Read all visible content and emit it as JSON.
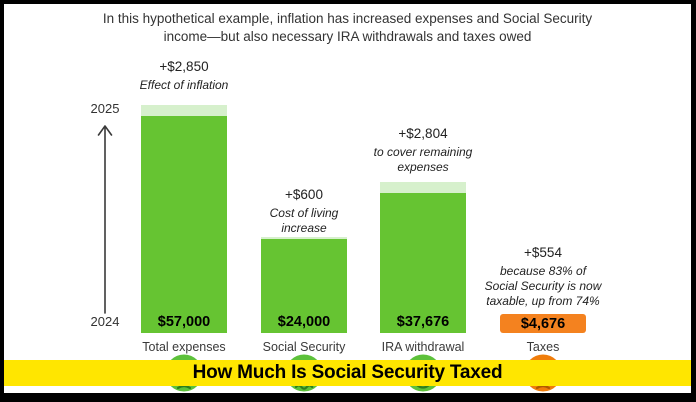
{
  "title": "In this hypothetical example, inflation has increased expenses and Social Security income—but also necessary IRA withdrawals and taxes owed",
  "axis": {
    "top_year": "2025",
    "bottom_year": "2024"
  },
  "chart_data": {
    "type": "bar",
    "title": "In this hypothetical example, inflation has increased expenses and Social Security income—but also necessary IRA withdrawals and taxes owed",
    "categories": [
      "Total expenses",
      "Social Security",
      "IRA withdrawal",
      "Taxes"
    ],
    "values": [
      57000,
      24000,
      37676,
      4676
    ],
    "value_labels": [
      "$57,000",
      "$24,000",
      "$37,676",
      "$4,676"
    ],
    "increments": [
      2850,
      600,
      2804,
      554
    ],
    "increment_labels": [
      "+$2,850",
      "+$600",
      "+$2,804",
      "+$554"
    ],
    "notes": [
      "Effect of inflation",
      "Cost of living increase",
      "to cover remaining expenses",
      "because 83% of Social Security is now taxable, up from 74%"
    ],
    "note_lines": [
      [
        "Effect of inflation"
      ],
      [
        "Cost of living",
        "increase"
      ],
      [
        "to cover remaining",
        "expenses"
      ],
      [
        "because 83% of",
        "Social Security is now",
        "taxable, up from 74%"
      ]
    ],
    "bar_colors": [
      "#66C432",
      "#66C432",
      "#66C432",
      "#F4821F"
    ],
    "increment_colors": [
      "#D6F0CC",
      "#D6F0CC",
      "#D6F0CC",
      null
    ],
    "axis_years": [
      "2024",
      "2025"
    ],
    "ylim": [
      0,
      57000
    ],
    "legend": "none",
    "grid": false
  },
  "faces": {
    "colors": [
      "#5DC13A",
      "#5DC13A",
      "#5DC13A",
      "#F07D0A"
    ],
    "mouth_color_green": "#2E7D1E",
    "mouth_color_orange": "#B05A00"
  },
  "banner": {
    "text": "How Much Is Social Security Taxed",
    "background": "#FFE600"
  }
}
